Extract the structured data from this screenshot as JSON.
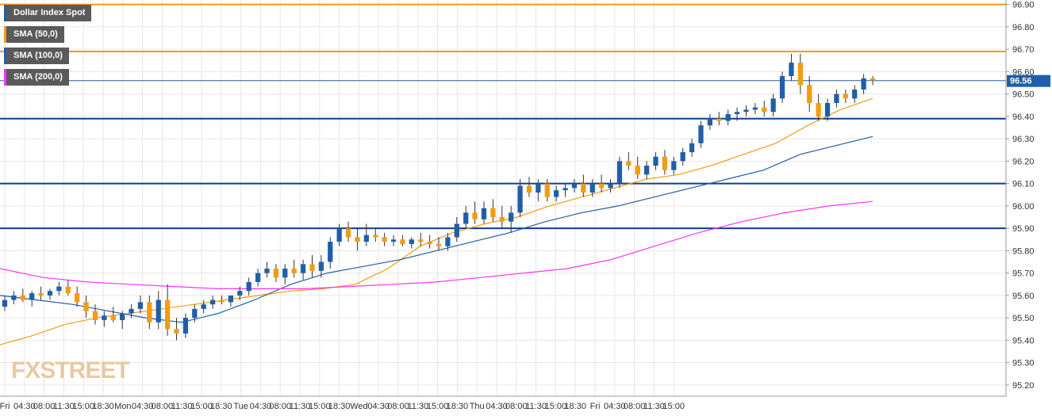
{
  "chart_data": {
    "type": "candlestick",
    "title": "Dollar Index Spot",
    "watermark": "FXSTREET",
    "ylim": [
      95.15,
      96.92
    ],
    "y_ticks": [
      "96.90",
      "96.80",
      "96.70",
      "96.60",
      "96.50",
      "96.40",
      "96.30",
      "96.20",
      "96.10",
      "96.00",
      "95.90",
      "95.80",
      "95.70",
      "95.60",
      "95.50",
      "95.40",
      "95.30",
      "95.20"
    ],
    "x_ticks": [
      "Fri",
      "04:30",
      "08:00",
      "11:30",
      "15:00",
      "18:30",
      "Mon",
      "04:30",
      "08:00",
      "11:30",
      "15:00",
      "18:30",
      "Tue",
      "04:30",
      "08:00",
      "11:30",
      "15:00",
      "18:30",
      "Wed",
      "04:30",
      "08:00",
      "11:30",
      "15:00",
      "18:30",
      "Thu",
      "04:30",
      "08:00",
      "11:30",
      "15:00",
      "18:30",
      "Fri",
      "04:30",
      "08:00",
      "11:30",
      "15:00"
    ],
    "last_price": "96.56",
    "levels": [
      {
        "value": 96.9,
        "color": "#f39c12"
      },
      {
        "value": 96.69,
        "color": "#f39c12"
      },
      {
        "value": 96.39,
        "color": "#0d3f8f"
      },
      {
        "value": 96.1,
        "color": "#0d3f8f"
      },
      {
        "value": 95.9,
        "color": "#0d3f8f"
      }
    ],
    "series": [
      {
        "name": "Dollar Index Spot",
        "color": "#1f5fa8"
      },
      {
        "name": "SMA (50,0)",
        "color": "#f39c12",
        "values": [
          95.38,
          95.42,
          95.47,
          95.5,
          95.52,
          95.54,
          95.56,
          95.58,
          95.6,
          95.62,
          95.63,
          95.65,
          95.72,
          95.82,
          95.88,
          95.92,
          95.95,
          96.0,
          96.04,
          96.08,
          96.12,
          96.14,
          96.18,
          96.23,
          96.28,
          96.36,
          96.43,
          96.48
        ]
      },
      {
        "name": "SMA (100,0)",
        "color": "#1f5fa8",
        "values": [
          95.6,
          95.58,
          95.56,
          95.53,
          95.5,
          95.48,
          95.52,
          95.58,
          95.65,
          95.7,
          95.73,
          95.76,
          95.8,
          95.84,
          95.88,
          95.93,
          95.97,
          96.0,
          96.04,
          96.08,
          96.12,
          96.16,
          96.23,
          96.27,
          96.31
        ]
      },
      {
        "name": "SMA (200,0)",
        "color": "#ff33ff",
        "values": [
          95.72,
          95.68,
          95.66,
          95.65,
          95.64,
          95.63,
          95.63,
          95.63,
          95.64,
          95.65,
          95.66,
          95.68,
          95.7,
          95.72,
          95.76,
          95.82,
          95.88,
          95.93,
          95.97,
          96.0,
          96.02
        ]
      }
    ],
    "candles": [
      [
        95.55,
        95.6,
        95.53,
        95.58
      ],
      [
        95.58,
        95.62,
        95.56,
        95.6
      ],
      [
        95.6,
        95.63,
        95.57,
        95.58
      ],
      [
        95.58,
        95.62,
        95.55,
        95.61
      ],
      [
        95.61,
        95.64,
        95.58,
        95.6
      ],
      [
        95.6,
        95.63,
        95.58,
        95.62
      ],
      [
        95.62,
        95.66,
        95.6,
        95.64
      ],
      [
        95.64,
        95.67,
        95.6,
        95.61
      ],
      [
        95.61,
        95.64,
        95.55,
        95.57
      ],
      [
        95.57,
        95.6,
        95.5,
        95.53
      ],
      [
        95.53,
        95.56,
        95.47,
        95.49
      ],
      [
        95.49,
        95.53,
        95.46,
        95.51
      ],
      [
        95.51,
        95.55,
        95.48,
        95.49
      ],
      [
        95.49,
        95.53,
        95.45,
        95.52
      ],
      [
        95.52,
        95.56,
        95.5,
        95.54
      ],
      [
        95.54,
        95.6,
        95.52,
        95.57
      ],
      [
        95.57,
        95.6,
        95.45,
        95.48
      ],
      [
        95.48,
        95.62,
        95.45,
        95.58
      ],
      [
        95.58,
        95.65,
        95.42,
        95.45
      ],
      [
        95.45,
        95.5,
        95.4,
        95.43
      ],
      [
        95.43,
        95.52,
        95.41,
        95.5
      ],
      [
        95.5,
        95.56,
        95.48,
        95.54
      ],
      [
        95.54,
        95.58,
        95.52,
        95.56
      ],
      [
        95.56,
        95.6,
        95.54,
        95.58
      ],
      [
        95.58,
        95.6,
        95.56,
        95.57
      ],
      [
        95.57,
        95.6,
        95.55,
        95.6
      ],
      [
        95.6,
        95.64,
        95.58,
        95.62
      ],
      [
        95.62,
        95.68,
        95.6,
        95.66
      ],
      [
        95.66,
        95.72,
        95.64,
        95.7
      ],
      [
        95.7,
        95.75,
        95.68,
        95.72
      ],
      [
        95.72,
        95.74,
        95.66,
        95.68
      ],
      [
        95.68,
        95.74,
        95.65,
        95.72
      ],
      [
        95.72,
        95.76,
        95.68,
        95.7
      ],
      [
        95.7,
        95.76,
        95.67,
        95.74
      ],
      [
        95.74,
        95.78,
        95.68,
        95.71
      ],
      [
        95.71,
        95.78,
        95.68,
        95.75
      ],
      [
        95.75,
        95.86,
        95.72,
        95.84
      ],
      [
        95.84,
        95.92,
        95.82,
        95.9
      ],
      [
        95.9,
        95.93,
        95.84,
        95.86
      ],
      [
        95.86,
        95.9,
        95.8,
        95.84
      ],
      [
        95.84,
        95.92,
        95.82,
        95.87
      ],
      [
        95.87,
        95.9,
        95.84,
        95.86
      ],
      [
        95.86,
        95.88,
        95.82,
        95.84
      ],
      [
        95.84,
        95.87,
        95.82,
        95.85
      ],
      [
        95.85,
        95.87,
        95.82,
        95.83
      ],
      [
        95.83,
        95.86,
        95.81,
        95.85
      ],
      [
        95.85,
        95.88,
        95.82,
        95.84
      ],
      [
        95.84,
        95.87,
        95.81,
        95.83
      ],
      [
        95.83,
        95.86,
        95.8,
        95.82
      ],
      [
        95.82,
        95.88,
        95.8,
        95.86
      ],
      [
        95.86,
        95.95,
        95.84,
        95.92
      ],
      [
        95.92,
        96.0,
        95.9,
        95.97
      ],
      [
        95.97,
        96.02,
        95.92,
        95.94
      ],
      [
        95.94,
        96.02,
        95.92,
        95.99
      ],
      [
        95.99,
        96.03,
        95.93,
        95.95
      ],
      [
        95.95,
        96.0,
        95.9,
        95.93
      ],
      [
        95.93,
        96.0,
        95.88,
        95.97
      ],
      [
        95.97,
        96.12,
        95.95,
        96.09
      ],
      [
        96.09,
        96.13,
        96.04,
        96.06
      ],
      [
        96.06,
        96.12,
        96.02,
        96.1
      ],
      [
        96.1,
        96.12,
        96.02,
        96.04
      ],
      [
        96.04,
        96.09,
        96.02,
        96.07
      ],
      [
        96.07,
        96.1,
        96.04,
        96.08
      ],
      [
        96.08,
        96.12,
        96.06,
        96.1
      ],
      [
        96.1,
        96.14,
        96.04,
        96.06
      ],
      [
        96.06,
        96.12,
        96.04,
        96.1
      ],
      [
        96.1,
        96.14,
        96.06,
        96.08
      ],
      [
        96.08,
        96.12,
        96.06,
        96.1
      ],
      [
        96.1,
        96.22,
        96.08,
        96.2
      ],
      [
        96.2,
        96.24,
        96.16,
        96.18
      ],
      [
        96.18,
        96.22,
        96.12,
        96.14
      ],
      [
        96.14,
        96.2,
        96.12,
        96.18
      ],
      [
        96.18,
        96.24,
        96.16,
        96.22
      ],
      [
        96.22,
        96.25,
        96.14,
        96.16
      ],
      [
        96.16,
        96.22,
        96.14,
        96.2
      ],
      [
        96.2,
        96.26,
        96.18,
        96.24
      ],
      [
        96.24,
        96.3,
        96.22,
        96.28
      ],
      [
        96.28,
        96.38,
        96.26,
        96.36
      ],
      [
        96.36,
        96.41,
        96.34,
        96.39
      ],
      [
        96.39,
        96.42,
        96.36,
        96.38
      ],
      [
        96.38,
        96.43,
        96.36,
        96.41
      ],
      [
        96.41,
        96.44,
        96.38,
        96.42
      ],
      [
        96.42,
        96.45,
        96.4,
        96.43
      ],
      [
        96.43,
        96.46,
        96.41,
        96.44
      ],
      [
        96.44,
        96.47,
        96.4,
        96.42
      ],
      [
        96.42,
        96.5,
        96.4,
        96.48
      ],
      [
        96.48,
        96.6,
        96.46,
        96.58
      ],
      [
        96.58,
        96.68,
        96.56,
        96.64
      ],
      [
        96.64,
        96.68,
        96.5,
        96.54
      ],
      [
        96.54,
        96.58,
        96.42,
        96.46
      ],
      [
        96.46,
        96.5,
        96.38,
        96.4
      ],
      [
        96.4,
        96.48,
        96.38,
        96.46
      ],
      [
        96.46,
        96.52,
        96.44,
        96.5
      ],
      [
        96.5,
        96.52,
        96.46,
        96.48
      ],
      [
        96.48,
        96.54,
        96.46,
        96.52
      ],
      [
        96.52,
        96.59,
        96.5,
        96.57
      ],
      [
        96.57,
        96.58,
        96.54,
        96.56
      ]
    ]
  }
}
